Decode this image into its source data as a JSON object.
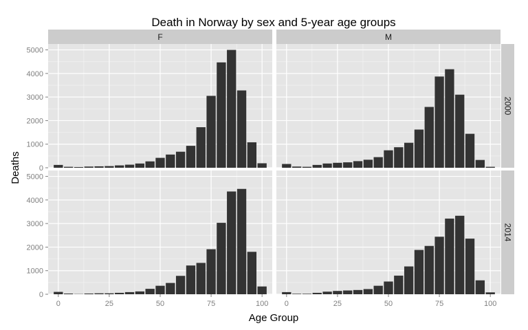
{
  "chart_data": {
    "type": "bar",
    "title": "Death in Norway by sex and 5-year age groups",
    "xlabel": "Age Group",
    "ylabel": "Deaths",
    "x_ticks": [
      0,
      25,
      50,
      75,
      100
    ],
    "y_ticks": [
      0,
      1000,
      2000,
      3000,
      4000,
      5000
    ],
    "xlim": [
      -5,
      105
    ],
    "ylim": [
      0,
      5250
    ],
    "grid": true,
    "bar_color": "#333333",
    "panel_background": "#e5e5e5",
    "strip_background": "#cccccc",
    "x": [
      0,
      5,
      10,
      15,
      20,
      25,
      30,
      35,
      40,
      45,
      50,
      55,
      60,
      65,
      70,
      75,
      80,
      85,
      90,
      95,
      100
    ],
    "facet_columns": [
      "F",
      "M"
    ],
    "facet_rows": [
      "2000",
      "2014"
    ],
    "panels": [
      {
        "sex": "F",
        "year": "2000",
        "values": [
          120,
          40,
          30,
          50,
          60,
          70,
          100,
          130,
          180,
          270,
          420,
          560,
          680,
          930,
          1720,
          3050,
          4470,
          5000,
          3280,
          1080,
          190
        ]
      },
      {
        "sex": "M",
        "year": "2000",
        "values": [
          160,
          50,
          40,
          120,
          180,
          210,
          230,
          280,
          340,
          450,
          740,
          870,
          1060,
          1620,
          2580,
          3870,
          4180,
          3100,
          1440,
          330,
          40
        ]
      },
      {
        "sex": "F",
        "year": "2014",
        "values": [
          100,
          30,
          10,
          30,
          40,
          40,
          60,
          90,
          120,
          230,
          360,
          480,
          780,
          1220,
          1330,
          1910,
          3030,
          4360,
          4470,
          1800,
          330
        ]
      },
      {
        "sex": "M",
        "year": "2014",
        "values": [
          90,
          20,
          20,
          60,
          110,
          140,
          160,
          180,
          220,
          360,
          540,
          790,
          1180,
          1880,
          2050,
          2440,
          3210,
          3330,
          2360,
          590,
          80
        ]
      }
    ]
  }
}
